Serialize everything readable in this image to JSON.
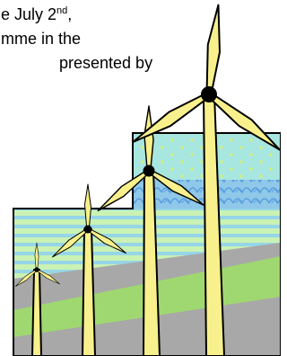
{
  "text_lines": [
    {
      "text": "e July 2",
      "sup": "nd",
      "after": ","
    },
    {
      "text": "mme in the"
    },
    {
      "text": "presented by"
    }
  ]
}
